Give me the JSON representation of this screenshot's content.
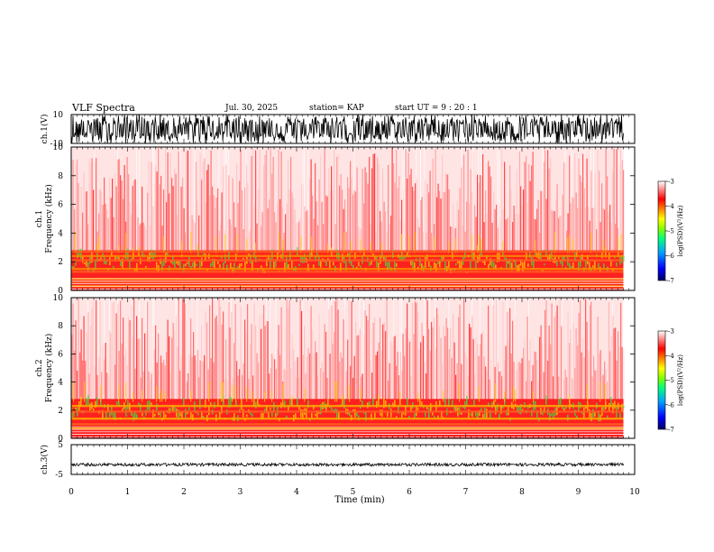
{
  "header": {
    "title": "VLF Spectra",
    "date": "Jul. 30, 2025",
    "station": "station= KAP",
    "start": "start UT =  9 : 20 : 1"
  },
  "colors": {
    "colormap": [
      "#000070",
      "#0000ff",
      "#00a0ff",
      "#00ff80",
      "#80ff00",
      "#ffff00",
      "#ff8000",
      "#ff0000",
      "#ffffff"
    ],
    "spectrum_low": "#ff2020",
    "spectrum_band": "#ffd000",
    "spectrum_band2": "#40e040"
  },
  "chart_data": [
    {
      "type": "line",
      "name": "ch.1 waveform",
      "ylabel": "ch.1(V)",
      "ylim": [
        -10,
        10
      ],
      "yticks": [
        "10",
        "-10"
      ],
      "xlim": [
        0,
        10
      ],
      "description_values": "dense noise spanning roughly -10 to +10 V over 0 to 9.8 min"
    },
    {
      "type": "heatmap",
      "name": "ch.1 spectrogram",
      "ylabel": "ch.1\nFrequency (kHz)",
      "ylabel_lines": [
        "ch.1",
        "Frequency (kHz)"
      ],
      "ylim": [
        0,
        10
      ],
      "yticks": [
        "0",
        "2",
        "4",
        "6",
        "8",
        "10"
      ],
      "xlim": [
        0,
        10
      ],
      "data_end_min": 9.8,
      "colorbar": {
        "label": "log(PSD)(V²/Hz)",
        "ticks": [
          "-3",
          "-4",
          "-5",
          "-6",
          "-7"
        ],
        "range": [
          -7,
          -3
        ]
      },
      "bands_khz": [
        0.3,
        0.6,
        0.8,
        1.3,
        1.5,
        2.1,
        2.4,
        2.7
      ]
    },
    {
      "type": "heatmap",
      "name": "ch.2 spectrogram",
      "ylabel_lines": [
        "ch.2",
        "Frequency (kHz)"
      ],
      "ylim": [
        0,
        10
      ],
      "yticks": [
        "0",
        "2",
        "4",
        "6",
        "8",
        "10"
      ],
      "xlim": [
        0,
        10
      ],
      "data_end_min": 9.8,
      "colorbar": {
        "label": "log(PSD)(V²/Hz)",
        "ticks": [
          "-3",
          "-4",
          "-5",
          "-6",
          "-7"
        ],
        "range": [
          -7,
          -3
        ]
      },
      "bands_khz": [
        0.7,
        1.0,
        1.4,
        1.9,
        2.3
      ]
    },
    {
      "type": "line",
      "name": "ch.3 waveform",
      "ylabel": "ch.3(V)",
      "ylim": [
        -5,
        5
      ],
      "yticks": [
        "5",
        "-5"
      ],
      "xlim": [
        0,
        10
      ],
      "xlabel": "Time (min)",
      "xticks": [
        "0",
        "1",
        "2",
        "3",
        "4",
        "5",
        "6",
        "7",
        "8",
        "9",
        "10"
      ],
      "description_values": "narrow band around -1 to -2 V over 0 to 9.8 min"
    }
  ]
}
